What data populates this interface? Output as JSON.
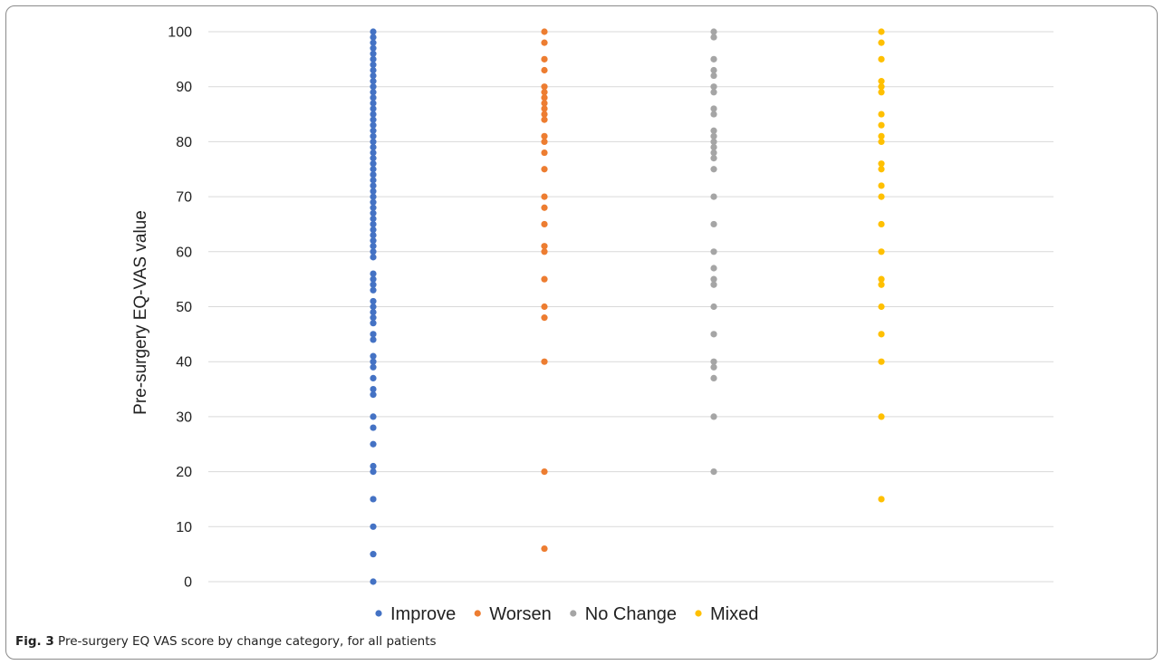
{
  "caption": {
    "label": "Fig. 3",
    "text": "Pre-surgery EQ VAS score by change category, for all patients"
  },
  "chart_data": {
    "type": "scatter",
    "title": "",
    "xlabel": "",
    "ylabel": "Pre-surgery EQ-VAS value",
    "ylim": [
      0,
      100
    ],
    "yticks": [
      0,
      10,
      20,
      30,
      40,
      50,
      60,
      70,
      80,
      90,
      100
    ],
    "grid": true,
    "legend_position": "bottom",
    "series": [
      {
        "name": "Improve",
        "color": "#4472C4",
        "values": [
          100,
          99,
          98,
          97,
          96,
          95,
          94,
          93,
          92,
          91,
          90,
          89,
          88,
          87,
          86,
          85,
          84,
          83,
          82,
          81,
          80,
          79,
          78,
          77,
          76,
          75,
          74,
          73,
          72,
          71,
          70,
          69,
          68,
          67,
          66,
          65,
          64,
          63,
          62,
          61,
          60,
          59,
          56,
          55,
          54,
          53,
          51,
          50,
          49,
          48,
          47,
          45,
          44,
          41,
          40,
          39,
          37,
          35,
          34,
          30,
          28,
          25,
          21,
          20,
          15,
          10,
          5,
          0
        ]
      },
      {
        "name": "Worsen",
        "color": "#ED7D31",
        "values": [
          100,
          98,
          95,
          93,
          90,
          89,
          88,
          87,
          86,
          85,
          84,
          81,
          80,
          78,
          75,
          70,
          68,
          65,
          61,
          60,
          55,
          50,
          48,
          40,
          20,
          6
        ]
      },
      {
        "name": "No Change",
        "color": "#A5A5A5",
        "values": [
          100,
          99,
          95,
          93,
          92,
          90,
          89,
          86,
          85,
          82,
          81,
          80,
          79,
          78,
          77,
          75,
          70,
          65,
          60,
          57,
          55,
          54,
          50,
          45,
          40,
          39,
          37,
          30,
          20
        ]
      },
      {
        "name": "Mixed",
        "color": "#FFC000",
        "values": [
          100,
          98,
          95,
          91,
          90,
          89,
          85,
          83,
          81,
          80,
          76,
          75,
          72,
          70,
          65,
          60,
          55,
          54,
          50,
          45,
          40,
          30,
          15
        ]
      }
    ]
  }
}
